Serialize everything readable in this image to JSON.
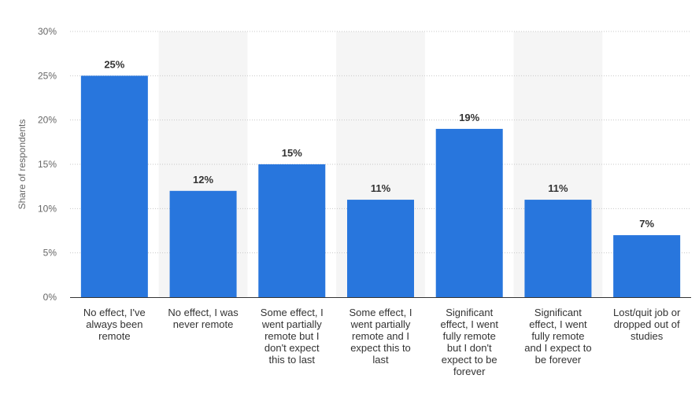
{
  "chart_data": {
    "type": "bar",
    "ylabel": "Share of respondents",
    "categories": [
      [
        "No effect, I've",
        "always been",
        "remote"
      ],
      [
        "No effect, I was",
        "never remote"
      ],
      [
        "Some effect, I",
        "went partially",
        "remote but I",
        "don't expect",
        "this to last"
      ],
      [
        "Some effect, I",
        "went partially",
        "remote and I",
        "expect this to",
        "last"
      ],
      [
        "Significant",
        "effect, I went",
        "fully remote",
        "but I don't",
        "expect to be",
        "forever"
      ],
      [
        "Significant",
        "effect, I went",
        "fully remote",
        "and I expect to",
        "be forever"
      ],
      [
        "Lost/quit job or",
        "dropped out of",
        "studies"
      ]
    ],
    "values": [
      25,
      12,
      15,
      11,
      19,
      11,
      7
    ],
    "value_labels": [
      "25%",
      "12%",
      "15%",
      "11%",
      "19%",
      "11%",
      "7%"
    ],
    "yticks": [
      0,
      5,
      10,
      15,
      20,
      25,
      30
    ],
    "ytick_labels": [
      "0%",
      "5%",
      "10%",
      "15%",
      "20%",
      "25%",
      "30%"
    ],
    "ylim": [
      0,
      30
    ],
    "grid": true,
    "bar_color": "#2876dd",
    "band_color": "#f5f5f5"
  }
}
